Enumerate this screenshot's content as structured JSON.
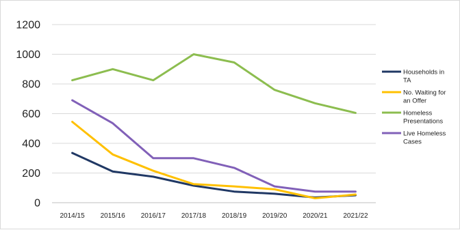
{
  "chart_data": {
    "type": "line",
    "title": "",
    "xlabel": "",
    "ylabel": "",
    "ylim": [
      0,
      1200
    ],
    "yticks": [
      0,
      200,
      400,
      600,
      800,
      1000,
      1200
    ],
    "grid": true,
    "legend_position": "right",
    "categories": [
      "2014/15",
      "2015/16",
      "2016/17",
      "2017/18",
      "2018/19",
      "2019/20",
      "2020/21",
      "2021/22"
    ],
    "series": [
      {
        "name": "Households in TA",
        "legend_lines": [
          "Households in",
          "TA"
        ],
        "color": "#203864",
        "values": [
          335,
          210,
          175,
          115,
          75,
          60,
          35,
          50
        ]
      },
      {
        "name": "No. Waiting for an Offer",
        "legend_lines": [
          "No. Waiting for",
          "an Offer"
        ],
        "color": "#ffc000",
        "values": [
          545,
          325,
          215,
          125,
          110,
          90,
          30,
          55
        ]
      },
      {
        "name": "Homeless Presentations",
        "legend_lines": [
          "Homeless",
          "Presentations"
        ],
        "color": "#8cbd4f",
        "values": [
          825,
          900,
          825,
          1000,
          945,
          760,
          670,
          605
        ]
      },
      {
        "name": "Live Homeless Cases",
        "legend_lines": [
          "Live Homeless",
          "Cases"
        ],
        "color": "#8160b8",
        "values": [
          690,
          535,
          300,
          300,
          235,
          110,
          75,
          75
        ]
      }
    ]
  }
}
